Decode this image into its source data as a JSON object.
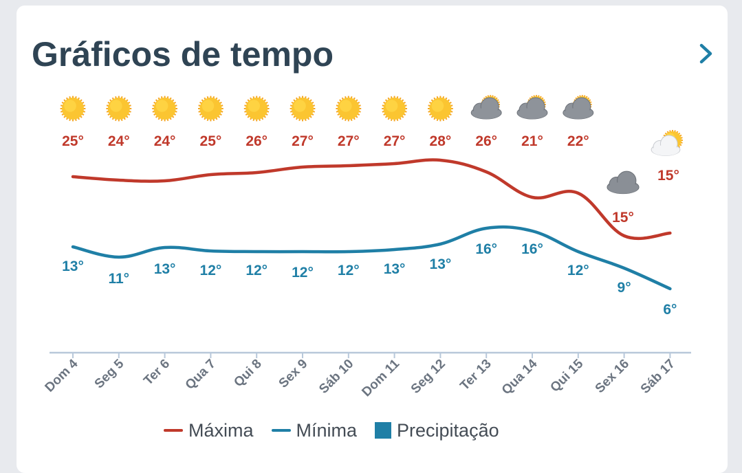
{
  "header": {
    "title": "Gráficos de tempo"
  },
  "colors": {
    "max": "#c0392b",
    "min": "#1f7fa6",
    "precip": "#1f7fa6",
    "axis": "#b8c8da",
    "sun": "#fbc531",
    "cloud": "#8a8f96"
  },
  "legend": {
    "max": "Máxima",
    "min": "Mínima",
    "precip": "Precipitação"
  },
  "chart_data": {
    "type": "line",
    "categories": [
      "Dom 4",
      "Seg 5",
      "Ter 6",
      "Qua 7",
      "Qui 8",
      "Sex 9",
      "Sáb 10",
      "Dom 11",
      "Seg 12",
      "Ter 13",
      "Qua 14",
      "Qui 15",
      "Sex 16",
      "Sáb 17"
    ],
    "icons": [
      "sun-icon",
      "sun-icon",
      "sun-icon",
      "sun-icon",
      "sun-icon",
      "sun-icon",
      "sun-icon",
      "sun-icon",
      "sun-icon",
      "partly-cloudy-icon",
      "partly-cloudy-icon",
      "partly-cloudy-icon",
      "cloud-icon",
      "partly-sunny-icon"
    ],
    "series": [
      {
        "name": "Máxima",
        "values": [
          25,
          24,
          24,
          25,
          26,
          27,
          27,
          27,
          28,
          26,
          21,
          22,
          15,
          15
        ],
        "labels": [
          "25°",
          "24°",
          "24°",
          "25°",
          "26°",
          "27°",
          "27°",
          "27°",
          "28°",
          "26°",
          "21°",
          "22°",
          "15°",
          "15°"
        ]
      },
      {
        "name": "Mínima",
        "values": [
          13,
          11,
          13,
          12,
          12,
          12,
          12,
          13,
          13,
          16,
          16,
          12,
          9,
          6
        ],
        "labels": [
          "13°",
          "11°",
          "13°",
          "12°",
          "12°",
          "12°",
          "12°",
          "13°",
          "13°",
          "16°",
          "16°",
          "12°",
          "9°",
          "6°"
        ]
      }
    ],
    "grid": false,
    "legend_position": "bottom"
  }
}
